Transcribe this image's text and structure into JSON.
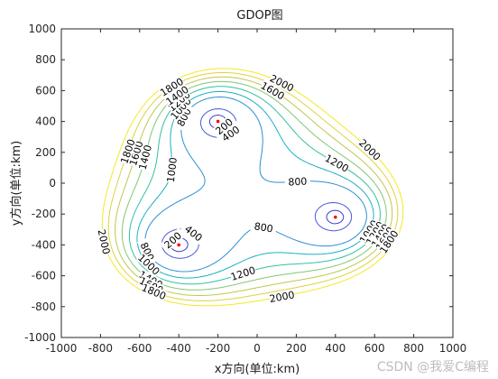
{
  "chart_data": {
    "type": "contour",
    "title": "GDOP图",
    "xlabel": "x方向(单位:km)",
    "ylabel": "y方向(单位:km)",
    "xlim": [
      -1000,
      1000
    ],
    "ylim": [
      -1000,
      1000
    ],
    "xticks": [
      -1000,
      -800,
      -600,
      -400,
      -200,
      0,
      200,
      400,
      600,
      800,
      1000
    ],
    "yticks": [
      -1000,
      -800,
      -600,
      -400,
      -200,
      0,
      200,
      400,
      600,
      800,
      1000
    ],
    "grid": false,
    "levels": [
      200,
      400,
      800,
      1000,
      1200,
      1400,
      1600,
      1800,
      2000
    ],
    "level_colors": {
      "200": "#3c3ad1",
      "400": "#4858d8",
      "800": "#2a90d4",
      "1000": "#1ab0c6",
      "1200": "#30c0a0",
      "1400": "#80c770",
      "1600": "#bdc94a",
      "1800": "#e1d13a",
      "2000": "#f5e820"
    },
    "stations": [
      {
        "x": -200,
        "y": 400
      },
      {
        "x": 400,
        "y": -220
      },
      {
        "x": -400,
        "y": -400
      }
    ],
    "station_color": "#ff0000"
  },
  "watermark": "CSDN @我爱C编程"
}
